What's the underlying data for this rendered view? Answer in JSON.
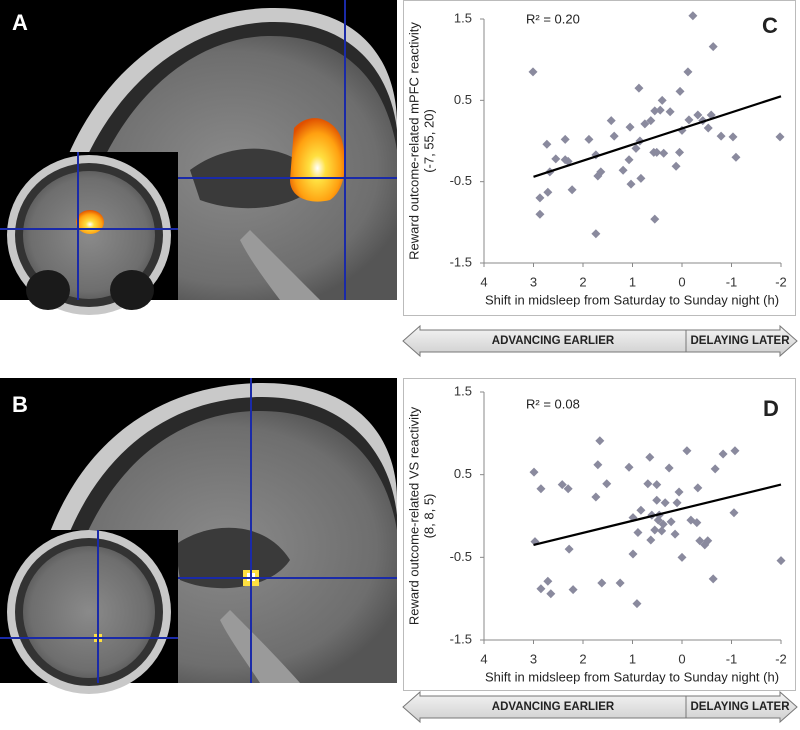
{
  "panel_labels": [
    "A",
    "B"
  ],
  "chart_data": [
    {
      "type": "scatter",
      "panel_label": "C",
      "annotation": "R² = 0.20",
      "ylabel": [
        "Reward outcome-related mPFC reactivity",
        "(-7, 55, 20)"
      ],
      "xlabel": "Shift in midsleep from Saturday to Sunday night (h)",
      "arrow_labels": [
        "ADVANCING EARLIER",
        "DELAYING LATER"
      ],
      "xlim": [
        4,
        -2
      ],
      "xticks": [
        4,
        3,
        2,
        1,
        0,
        -1,
        -2
      ],
      "ylim": [
        -1.5,
        1.5
      ],
      "yticks": [
        1.5,
        0.5,
        -0.5,
        -1.5
      ],
      "color": "#8a8a9e",
      "x": [
        3.01,
        -0.22,
        -0.63,
        0.87,
        -0.12,
        0.04,
        0.4,
        2.36,
        2.73,
        1.43,
        1.37,
        1.05,
        0.75,
        0.63,
        0.55,
        0.44,
        0.24,
        -0.42,
        -0.59,
        -0.53,
        -0.14,
        0.0,
        -0.32,
        -0.79,
        -1.03,
        -1.98,
        -1.09,
        1.88,
        0.85,
        0.93,
        0.57,
        0.51,
        0.37,
        0.05,
        0.12,
        2.55,
        2.36,
        2.3,
        1.74,
        1.64,
        1.7,
        1.07,
        1.19,
        1.03,
        0.83,
        2.67,
        2.22,
        2.71,
        2.87,
        2.87,
        0.55,
        1.74
      ],
      "values": [
        0.85,
        1.54,
        1.16,
        0.65,
        0.85,
        0.61,
        0.5,
        0.02,
        -0.04,
        0.25,
        0.06,
        0.17,
        0.21,
        0.25,
        0.37,
        0.38,
        0.36,
        0.25,
        0.32,
        0.16,
        0.26,
        0.13,
        0.32,
        0.06,
        0.05,
        0.05,
        -0.2,
        0.02,
        0.0,
        -0.09,
        -0.14,
        -0.14,
        -0.15,
        -0.14,
        -0.31,
        -0.22,
        -0.23,
        -0.25,
        -0.17,
        -0.38,
        -0.43,
        -0.23,
        -0.36,
        -0.53,
        -0.46,
        -0.38,
        -0.6,
        -0.63,
        -0.7,
        -0.9,
        -0.96,
        -1.14
      ],
      "fit": {
        "x": [
          3,
          -2
        ],
        "values": [
          -0.44,
          0.55
        ],
        "color": "#000000"
      }
    },
    {
      "type": "scatter",
      "panel_label": "D",
      "annotation": "R² = 0.08",
      "ylabel": [
        "Reward outcome-related VS reactivity",
        "(8, 8, 5)"
      ],
      "xlabel": "Shift in midsleep from Saturday to Sunday night (h)",
      "arrow_labels": [
        "ADVANCING EARLIER",
        "DELAYING LATER"
      ],
      "xlim": [
        4,
        -2
      ],
      "xticks": [
        4,
        3,
        2,
        1,
        0,
        -1,
        -2
      ],
      "ylim": [
        -1.5,
        1.5
      ],
      "yticks": [
        1.5,
        0.5,
        -0.5,
        -1.5
      ],
      "color": "#8a8a9e",
      "x": [
        1.66,
        0.65,
        -0.83,
        -1.07,
        -0.1,
        1.7,
        1.07,
        0.26,
        -0.67,
        2.99,
        2.85,
        2.3,
        2.42,
        1.52,
        1.74,
        0.69,
        0.51,
        0.06,
        -0.32,
        0.51,
        0.34,
        0.1,
        0.99,
        0.83,
        0.61,
        0.46,
        0.48,
        0.38,
        0.22,
        -0.18,
        -0.3,
        -1.05,
        0.55,
        0.89,
        0.41,
        0.14,
        -0.36,
        -0.52,
        -0.46,
        2.97,
        2.28,
        0.63,
        0.99,
        0.0,
        1.62,
        1.25,
        2.71,
        2.85,
        2.65,
        2.2,
        -0.63,
        -2.0,
        0.91
      ],
      "values": [
        0.91,
        0.71,
        0.75,
        0.79,
        0.79,
        0.62,
        0.59,
        0.58,
        0.57,
        0.53,
        0.33,
        0.33,
        0.38,
        0.39,
        0.23,
        0.39,
        0.38,
        0.29,
        0.34,
        0.19,
        0.16,
        0.16,
        -0.02,
        0.07,
        0.01,
        0.01,
        -0.05,
        -0.1,
        -0.07,
        -0.05,
        -0.08,
        0.04,
        -0.17,
        -0.2,
        -0.18,
        -0.22,
        -0.3,
        -0.3,
        -0.35,
        -0.31,
        -0.4,
        -0.29,
        -0.46,
        -0.5,
        -0.81,
        -0.81,
        -0.79,
        -0.88,
        -0.94,
        -0.89,
        -0.76,
        -0.54,
        -1.06
      ],
      "fit": {
        "x": [
          3,
          -2
        ],
        "values": [
          -0.35,
          0.38
        ],
        "color": "#000000"
      }
    }
  ]
}
